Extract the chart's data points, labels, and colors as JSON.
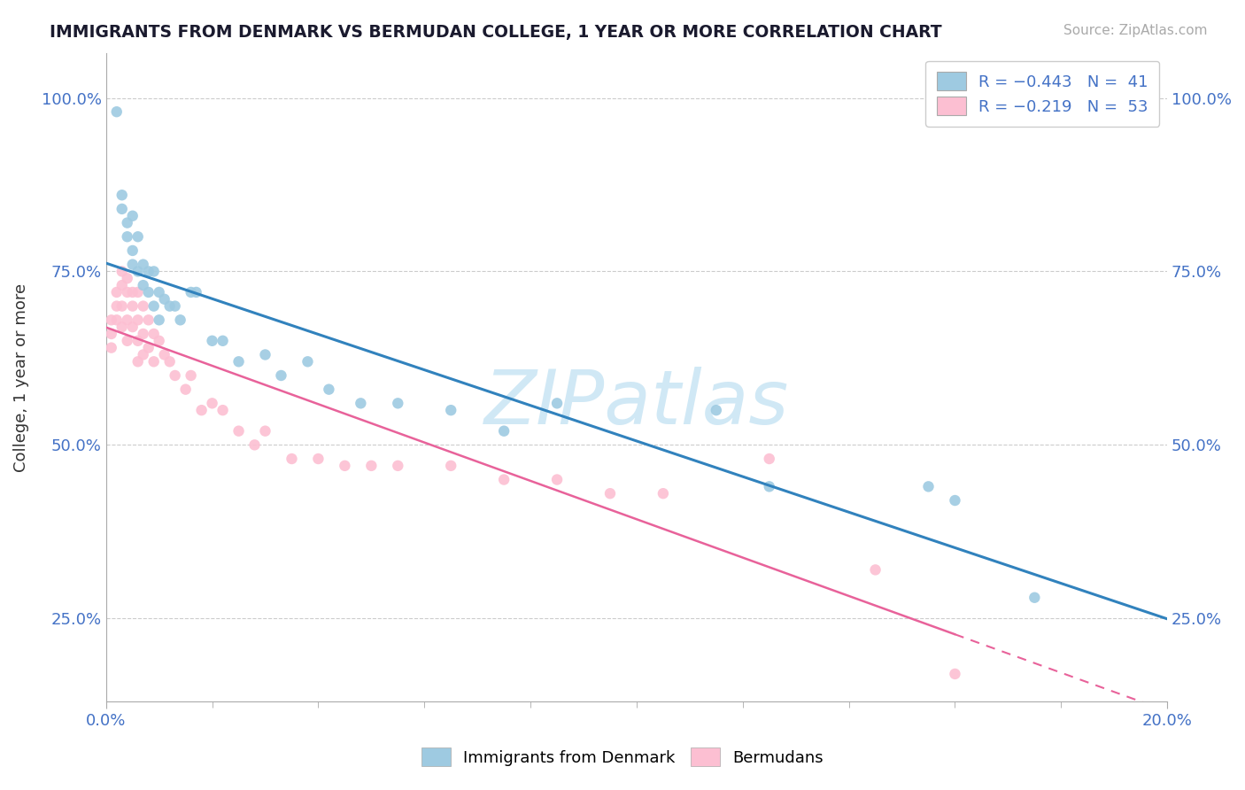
{
  "title": "IMMIGRANTS FROM DENMARK VS BERMUDAN COLLEGE, 1 YEAR OR MORE CORRELATION CHART",
  "source_text": "Source: ZipAtlas.com",
  "ylabel": "College, 1 year or more",
  "xlim": [
    0.0,
    0.2
  ],
  "ylim": [
    0.13,
    1.065
  ],
  "ytick_labels": [
    "25.0%",
    "50.0%",
    "75.0%",
    "100.0%"
  ],
  "ytick_values": [
    0.25,
    0.5,
    0.75,
    1.0
  ],
  "legend_r1": "R = −0.443",
  "legend_n1": "N =  41",
  "legend_r2": "R = −0.219",
  "legend_n2": "N =  53",
  "scatter_blue_x": [
    0.002,
    0.003,
    0.003,
    0.004,
    0.004,
    0.005,
    0.005,
    0.005,
    0.006,
    0.006,
    0.007,
    0.007,
    0.008,
    0.008,
    0.009,
    0.009,
    0.01,
    0.01,
    0.011,
    0.012,
    0.013,
    0.014,
    0.016,
    0.017,
    0.02,
    0.022,
    0.025,
    0.03,
    0.033,
    0.038,
    0.042,
    0.048,
    0.055,
    0.065,
    0.075,
    0.085,
    0.115,
    0.125,
    0.155,
    0.16,
    0.175
  ],
  "scatter_blue_y": [
    0.98,
    0.86,
    0.84,
    0.82,
    0.8,
    0.83,
    0.78,
    0.76,
    0.75,
    0.8,
    0.76,
    0.73,
    0.75,
    0.72,
    0.75,
    0.7,
    0.72,
    0.68,
    0.71,
    0.7,
    0.7,
    0.68,
    0.72,
    0.72,
    0.65,
    0.65,
    0.62,
    0.63,
    0.6,
    0.62,
    0.58,
    0.56,
    0.56,
    0.55,
    0.52,
    0.56,
    0.55,
    0.44,
    0.44,
    0.42,
    0.28
  ],
  "scatter_pink_x": [
    0.001,
    0.001,
    0.001,
    0.002,
    0.002,
    0.002,
    0.003,
    0.003,
    0.003,
    0.003,
    0.004,
    0.004,
    0.004,
    0.004,
    0.005,
    0.005,
    0.005,
    0.006,
    0.006,
    0.006,
    0.006,
    0.007,
    0.007,
    0.007,
    0.008,
    0.008,
    0.009,
    0.009,
    0.01,
    0.011,
    0.012,
    0.013,
    0.015,
    0.016,
    0.018,
    0.02,
    0.022,
    0.025,
    0.028,
    0.03,
    0.035,
    0.04,
    0.045,
    0.05,
    0.055,
    0.065,
    0.075,
    0.085,
    0.095,
    0.105,
    0.125,
    0.145,
    0.16
  ],
  "scatter_pink_y": [
    0.68,
    0.66,
    0.64,
    0.72,
    0.7,
    0.68,
    0.75,
    0.73,
    0.7,
    0.67,
    0.74,
    0.72,
    0.68,
    0.65,
    0.72,
    0.7,
    0.67,
    0.72,
    0.68,
    0.65,
    0.62,
    0.7,
    0.66,
    0.63,
    0.68,
    0.64,
    0.66,
    0.62,
    0.65,
    0.63,
    0.62,
    0.6,
    0.58,
    0.6,
    0.55,
    0.56,
    0.55,
    0.52,
    0.5,
    0.52,
    0.48,
    0.48,
    0.47,
    0.47,
    0.47,
    0.47,
    0.45,
    0.45,
    0.43,
    0.43,
    0.48,
    0.32,
    0.17
  ],
  "color_blue": "#9ecae1",
  "color_pink": "#fcbfd2",
  "color_blue_line": "#3182bd",
  "color_pink_line": "#e8629a",
  "watermark_color": "#d0e8f5",
  "background_color": "#ffffff",
  "grid_color": "#cccccc"
}
